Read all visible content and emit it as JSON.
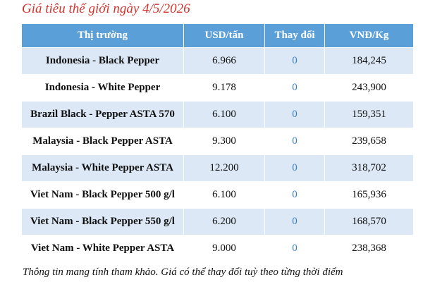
{
  "title": "Giá tiêu thế giới ngày 4/5/2026",
  "table": {
    "header": [
      "Thị trường",
      "USD/tấn",
      "Thay đổi",
      "VNĐ/Kg"
    ],
    "rows": [
      [
        "Indonesia - Black Pepper",
        "6.966",
        "0",
        "184,245"
      ],
      [
        "Indonesia - White Pepper",
        "9.178",
        "0",
        "243,900"
      ],
      [
        "Brazil Black - Pepper ASTA 570",
        "6.100",
        "0",
        "159,351"
      ],
      [
        "Malaysia - Black Pepper ASTA",
        "9.300",
        "0",
        "239,658"
      ],
      [
        "Malaysia - White Pepper ASTA",
        "12.200",
        "0",
        "318,702"
      ],
      [
        "Viet Nam - Black Pepper 500 g/l",
        "6.100",
        "0",
        "165,936"
      ],
      [
        "Viet Nam - Black Pepper 550 g/l",
        "6.200",
        "0",
        "168,570"
      ],
      [
        "Viet Nam - White Pepper ASTA",
        "9.000",
        "0",
        "238,368"
      ]
    ]
  },
  "footer": "Thông tin mang tính tham khảo. Giá có thể thay đổi tuỳ theo từng thời điểm"
}
